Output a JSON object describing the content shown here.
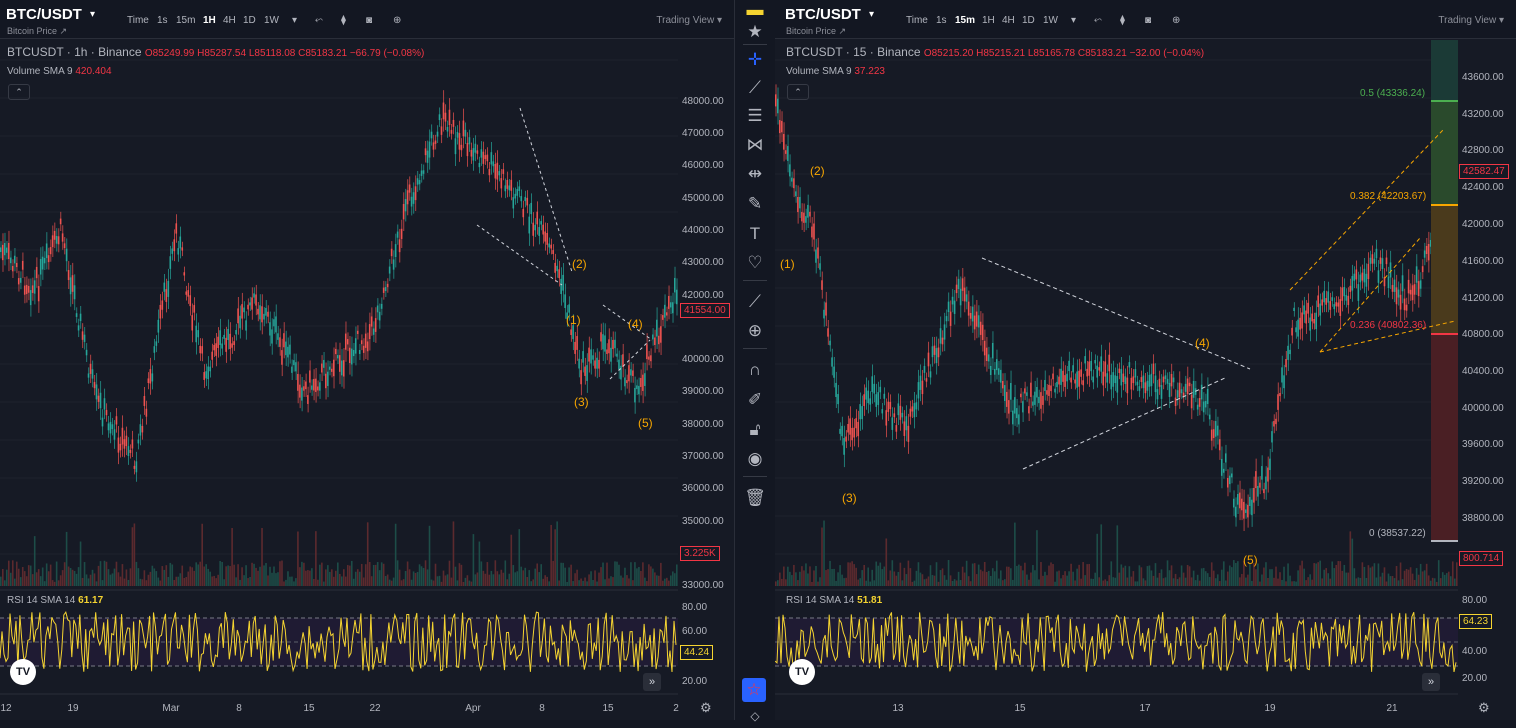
{
  "left": {
    "symbol": "BTC/USDT",
    "subtitle": "Bitcoin Price ↗",
    "timeframes": [
      "Time",
      "1s",
      "15m",
      "1H",
      "4H",
      "1D",
      "1W"
    ],
    "active_tf": "1H",
    "trading_view": "Trading View ▾",
    "legend_name": "BTCUSDT · 1h · Binance",
    "ohlc": "O85249.99 H85287.54 L85118.08 C85183.21 −66.79 (−0.08%)",
    "volume_label": "Volume SMA 9",
    "volume_value": "420.404",
    "rsi_label": "RSI 14 SMA 14",
    "rsi_value": "61.17",
    "price_ticks": [
      "48000.00",
      "47000.00",
      "46000.00",
      "45000.00",
      "44000.00",
      "43000.00",
      "42000.00",
      "40000.00",
      "39000.00",
      "38000.00",
      "37000.00",
      "36000.00",
      "35000.00",
      "33000.00"
    ],
    "price_tag": "41554.00",
    "volume_tag": "3.225K",
    "rsi_ticks": [
      "80.00",
      "60.00",
      "20.00"
    ],
    "rsi_tag": "44.24",
    "time_ticks": [
      "12",
      "19",
      "Mar",
      "8",
      "15",
      "22",
      "Apr",
      "8",
      "15",
      "2"
    ],
    "waves": [
      "(2)",
      "(1)",
      "(4)",
      "(3)",
      "(5)"
    ]
  },
  "right": {
    "symbol": "BTC/USDT",
    "subtitle": "Bitcoin Price ↗",
    "timeframes": [
      "Time",
      "1s",
      "15m",
      "1H",
      "4H",
      "1D",
      "1W"
    ],
    "active_tf": "15m",
    "trading_view": "Trading View ▾",
    "legend_name": "BTCUSDT · 15 · Binance",
    "ohlc": "O85215.20 H85215.21 L85165.78 C85183.21 −32.00 (−0.04%)",
    "volume_label": "Volume SMA 9",
    "volume_value": "37.223",
    "rsi_label": "RSI 14 SMA 14",
    "rsi_value": "51.81",
    "price_ticks": [
      "43600.00",
      "43200.00",
      "42800.00",
      "42400.00",
      "42000.00",
      "41600.00",
      "41200.00",
      "40800.00",
      "40400.00",
      "40000.00",
      "39600.00",
      "39200.00",
      "38800.00"
    ],
    "price_tag": "42582.47",
    "volume_tag": "800.714",
    "rsi_ticks": [
      "80.00",
      "40.00",
      "20.00"
    ],
    "rsi_tag": "64.23",
    "time_ticks": [
      "13",
      "15",
      "17",
      "19",
      "21"
    ],
    "waves": [
      "(2)",
      "(1)",
      "(3)",
      "(4)",
      "(5)"
    ],
    "fib_levels": [
      "0.5 (43336.24)",
      "0.382 (42203.67)",
      "0.236 (40802.36)",
      "0 (38537.22)"
    ]
  },
  "toolbar_icons": [
    "star-icon",
    "crosshair-icon",
    "trendline-icon",
    "fib-icon",
    "pattern-icon",
    "measure-icon",
    "brush-icon",
    "text-icon",
    "heart-icon",
    "ruler-icon",
    "zoom-icon",
    "magnet-icon",
    "lock-drawing-icon",
    "lock-icon",
    "eye-icon",
    "trash-icon"
  ],
  "colors": {
    "up": "#26a69a",
    "down": "#ef5350",
    "rsi": "#f5d431",
    "wave": "#f7a600",
    "accent": "#2962ff"
  }
}
